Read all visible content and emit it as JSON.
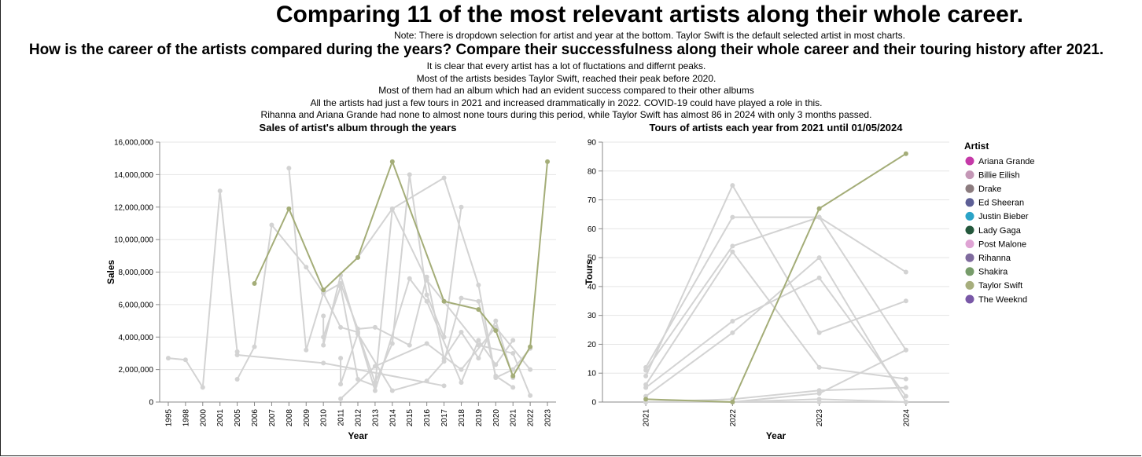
{
  "page": {
    "title": "Comparing 11 of the most relevant artists along their whole career.",
    "note": "Note: There is dropdown selection for artist and year at the bottom. Taylor Swift is the default selected artist in most charts.",
    "question": "How is the career of the artists compared during the years? Compare their successfulness along their whole career and their touring history after 2021.",
    "insights": [
      "It is clear that every artist has a lot of fluctations and differnt peaks.",
      "Most of the artists besides Taylor Swift, reached their peak before 2020.",
      "Most of them had an album which had an evident success compared to their other albums",
      "All the artists had just a few tours in 2021 and increased drammatically in 2022. COVID-19 could have played a role in this.",
      "Rihanna and Ariana Grande had none to almost none tours during this period, while Taylor Swift has almost 86 in 2024 with only 3 months passed."
    ]
  },
  "legend": {
    "title": "Artist",
    "placement": "right",
    "items": [
      {
        "name": "Ariana Grande",
        "color": "#c53aa8"
      },
      {
        "name": "Billie Eilish",
        "color": "#c497b6"
      },
      {
        "name": "Drake",
        "color": "#8c7c7f"
      },
      {
        "name": "Ed Sheeran",
        "color": "#5d5f96"
      },
      {
        "name": "Justin Bieber",
        "color": "#2ba3c7"
      },
      {
        "name": "Lady Gaga",
        "color": "#24583c"
      },
      {
        "name": "Post Malone",
        "color": "#dfa3d4"
      },
      {
        "name": "Rihanna",
        "color": "#7f6b9e"
      },
      {
        "name": "Shakira",
        "color": "#779c6a"
      },
      {
        "name": "Taylor Swift",
        "color": "#a7ae7d"
      },
      {
        "name": "The Weeknd",
        "color": "#7958a7"
      }
    ]
  },
  "colors": {
    "inactive": "#d3d3d3",
    "selected": "#a4ad78",
    "grid": "#e5e5e5"
  },
  "chart_data": [
    {
      "type": "line",
      "title": "Sales of artist's album through the years",
      "xlabel": "Year",
      "ylabel": "Sales",
      "categories": [
        "1995",
        "1998",
        "2000",
        "2001",
        "2005",
        "2006",
        "2007",
        "2008",
        "2009",
        "2010",
        "2011",
        "2012",
        "2013",
        "2014",
        "2015",
        "2016",
        "2017",
        "2018",
        "2019",
        "2020",
        "2021",
        "2022",
        "2023"
      ],
      "ylim": [
        0,
        16000000
      ],
      "yticks": [
        0,
        2000000,
        4000000,
        6000000,
        8000000,
        10000000,
        12000000,
        14000000,
        16000000
      ],
      "ytick_labels": [
        "0",
        "2,000,000",
        "4,000,000",
        "6,000,000",
        "8,000,000",
        "10,000,000",
        "12,000,000",
        "14,000,000",
        "16,000,000"
      ],
      "grid": true,
      "selected_series": "Taylor Swift",
      "series": [
        {
          "artist": "Taylor Swift",
          "selected": true,
          "points": [
            [
              "2006",
              7300000
            ],
            [
              "2008",
              11900000
            ],
            [
              "2010",
              6900000
            ],
            [
              "2012",
              8900000
            ],
            [
              "2014",
              14800000
            ],
            [
              "2017",
              6200000
            ],
            [
              "2019",
              5700000
            ],
            [
              "2020",
              4400000
            ],
            [
              "2021",
              1600000
            ],
            [
              "2022",
              3400000
            ],
            [
              "2023",
              14800000
            ]
          ]
        },
        {
          "artist": "",
          "selected": false,
          "points": [
            [
              "1995",
              2700000
            ],
            [
              "1998",
              2600000
            ],
            [
              "2000",
              900000
            ],
            [
              "2001",
              13000000
            ],
            [
              "2005",
              3100000
            ]
          ]
        },
        {
          "artist": "",
          "selected": false,
          "points": [
            [
              "2005",
              2900000
            ],
            [
              "2010",
              2400000
            ],
            [
              "2017",
              1000000
            ]
          ]
        },
        {
          "artist": "",
          "selected": false,
          "points": [
            [
              "2005",
              1400000
            ],
            [
              "2006",
              3400000
            ],
            [
              "2007",
              10900000
            ],
            [
              "2009",
              8300000
            ],
            [
              "2010",
              6700000
            ],
            [
              "2011",
              4600000
            ],
            [
              "2012",
              4300000
            ],
            [
              "2013",
              1200000
            ],
            [
              "2014",
              3600000
            ],
            [
              "2015",
              14000000
            ],
            [
              "2016",
              6600000
            ],
            [
              "2017",
              4000000
            ],
            [
              "2018",
              12000000
            ]
          ]
        },
        {
          "artist": "",
          "selected": false,
          "points": [
            [
              "2008",
              14400000
            ],
            [
              "2009",
              3200000
            ],
            [
              "2010",
              6700000
            ],
            [
              "2011",
              7300000
            ],
            [
              "2012",
              4500000
            ],
            [
              "2013",
              4600000
            ],
            [
              "2015",
              3500000
            ],
            [
              "2016",
              7700000
            ],
            [
              "2017",
              2700000
            ],
            [
              "2018",
              4300000
            ],
            [
              "2019",
              2700000
            ],
            [
              "2020",
              5000000
            ],
            [
              "2021",
              1500000
            ]
          ]
        },
        {
          "artist": "",
          "selected": false,
          "points": [
            [
              "2010",
              5300000
            ],
            [
              "2010",
              3500000
            ],
            [
              "2011",
              7800000
            ],
            [
              "2013",
              700000
            ],
            [
              "2015",
              7600000
            ],
            [
              "2016",
              6200000
            ],
            [
              "2018",
              1200000
            ],
            [
              "2019",
              3800000
            ],
            [
              "2020",
              2300000
            ],
            [
              "2021",
              3800000
            ]
          ]
        },
        {
          "artist": "",
          "selected": false,
          "points": [
            [
              "2010",
              4000000
            ],
            [
              "2011",
              7100000
            ],
            [
              "2012",
              1400000
            ],
            [
              "2013",
              1000000
            ],
            [
              "2014",
              11900000
            ],
            [
              "2017",
              13800000
            ],
            [
              "2019",
              7200000
            ],
            [
              "2020",
              1500000
            ],
            [
              "2021",
              2000000
            ],
            [
              "2022",
              3300000
            ]
          ]
        },
        {
          "artist": "",
          "selected": false,
          "points": [
            [
              "2011",
              2700000
            ],
            [
              "2011",
              1100000
            ],
            [
              "2012",
              4200000
            ],
            [
              "2014",
              700000
            ],
            [
              "2016",
              1300000
            ],
            [
              "2017",
              2500000
            ],
            [
              "2018",
              6400000
            ],
            [
              "2019",
              6200000
            ],
            [
              "2020",
              1600000
            ],
            [
              "2021",
              900000
            ]
          ]
        },
        {
          "artist": "",
          "selected": false,
          "points": [
            [
              "2011",
              200000
            ],
            [
              "2013",
              2200000
            ],
            [
              "2016",
              3600000
            ],
            [
              "2018",
              2000000
            ],
            [
              "2020",
              4600000
            ],
            [
              "2022",
              2000000
            ]
          ]
        },
        {
          "artist": "",
          "selected": false,
          "points": [
            [
              "2012",
              8900000
            ],
            [
              "2014",
              11900000
            ],
            [
              "2016",
              7500000
            ],
            [
              "2019",
              3500000
            ],
            [
              "2021",
              3000000
            ],
            [
              "2022",
              400000
            ]
          ]
        }
      ]
    },
    {
      "type": "line",
      "title": "Tours of artists each year from 2021 until 01/05/2024",
      "xlabel": "Year",
      "ylabel": "Tours",
      "categories": [
        "2021",
        "2022",
        "2023",
        "2024"
      ],
      "ylim": [
        0,
        90
      ],
      "yticks": [
        0,
        10,
        20,
        30,
        40,
        50,
        60,
        70,
        80,
        90
      ],
      "grid": true,
      "selected_series": "Taylor Swift",
      "series": [
        {
          "artist": "Taylor Swift",
          "selected": true,
          "values": [
            1,
            0,
            67,
            86
          ]
        },
        {
          "artist": "",
          "selected": false,
          "values": [
            9,
            75,
            24,
            35
          ]
        },
        {
          "artist": "",
          "selected": false,
          "values": [
            12,
            64,
            64,
            45
          ]
        },
        {
          "artist": "",
          "selected": false,
          "values": [
            11,
            54,
            64,
            18
          ]
        },
        {
          "artist": "",
          "selected": false,
          "values": [
            6,
            52,
            12,
            8
          ]
        },
        {
          "artist": "",
          "selected": false,
          "values": [
            5,
            28,
            43,
            2
          ]
        },
        {
          "artist": "",
          "selected": false,
          "values": [
            2,
            24,
            50,
            0
          ]
        },
        {
          "artist": "",
          "selected": false,
          "values": [
            0,
            0,
            3,
            18
          ]
        },
        {
          "artist": "",
          "selected": false,
          "values": [
            0,
            1,
            4,
            5
          ]
        },
        {
          "artist": "",
          "selected": false,
          "values": [
            0,
            0,
            1,
            0
          ]
        },
        {
          "artist": "",
          "selected": false,
          "values": [
            0,
            0,
            0,
            0
          ]
        }
      ]
    }
  ]
}
